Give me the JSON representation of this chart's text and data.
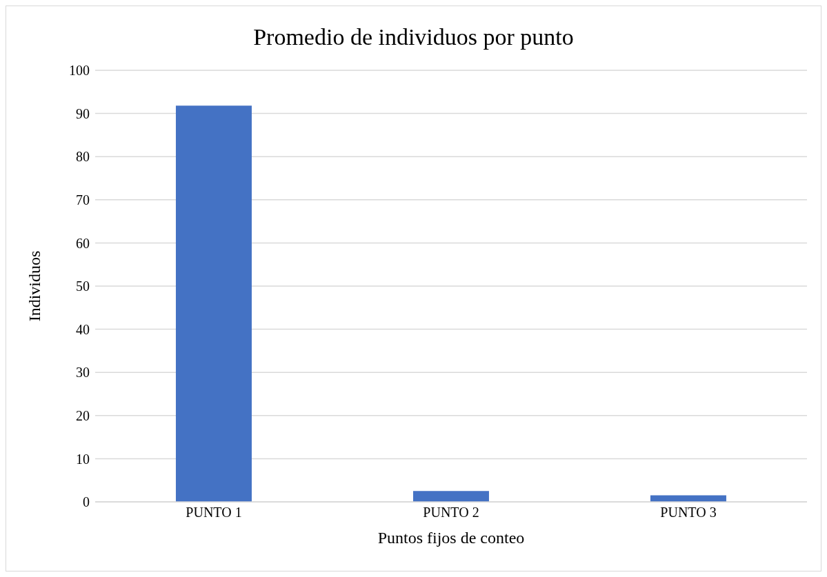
{
  "chart_data": {
    "type": "bar",
    "title": "Promedio de individuos por punto",
    "xlabel": "Puntos fijos de conteo",
    "ylabel": "Individuos",
    "categories": [
      "PUNTO 1",
      "PUNTO 2",
      "PUNTO 3"
    ],
    "values": [
      91.8,
      2.5,
      1.5
    ],
    "color": "#4472c4",
    "ylim": [
      0,
      100
    ],
    "yticks": [
      0,
      10,
      20,
      30,
      40,
      50,
      60,
      70,
      80,
      90,
      100
    ],
    "grid": "y"
  }
}
